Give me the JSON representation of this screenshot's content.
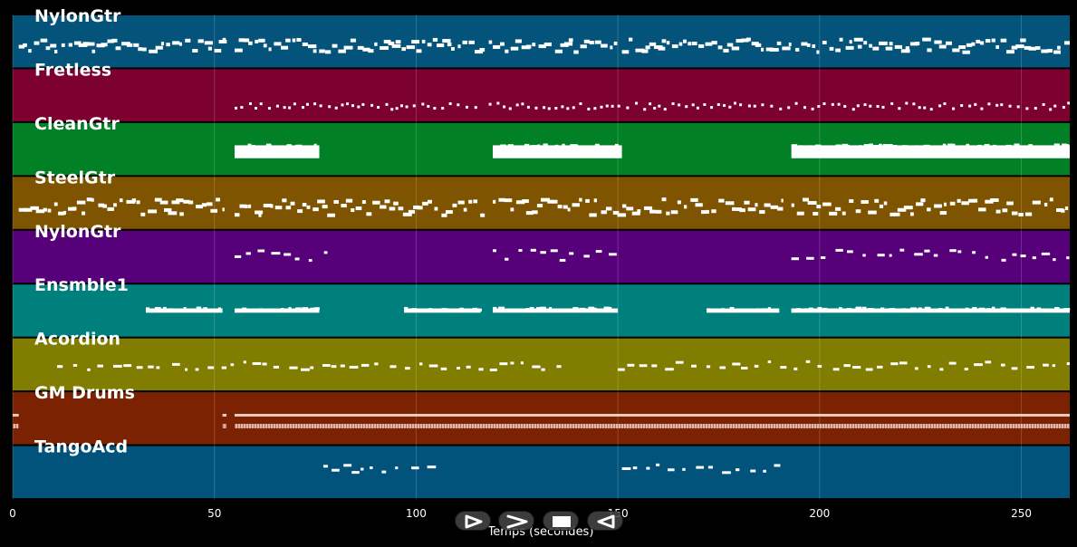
{
  "chart_data": {
    "type": "piano-roll",
    "xlabel": "Temps (secondes)",
    "xlim": [
      0,
      262
    ],
    "xticks": [
      0,
      50,
      100,
      150,
      200,
      250
    ],
    "xtick_labels": [
      "0",
      "50",
      "100",
      "150",
      "200",
      "250"
    ],
    "grid": true,
    "tracks": [
      {
        "name": "NylonGtr",
        "color": "#03537a",
        "segments": [
          [
            1.5,
            53.5
          ],
          [
            55,
            117
          ],
          [
            118,
            150
          ],
          [
            151,
            193
          ],
          [
            194,
            262
          ]
        ],
        "level": 0.55,
        "spread": 0.12,
        "style": "line"
      },
      {
        "name": "Fretless",
        "color": "#7c0030",
        "segments": [
          [
            55,
            117
          ],
          [
            118,
            191
          ],
          [
            192,
            262
          ]
        ],
        "level": 0.68,
        "spread": 0.06,
        "style": "dots"
      },
      {
        "name": "CleanGtr",
        "color": "#018025",
        "segments": [
          [
            55,
            76
          ],
          [
            119,
            151
          ],
          [
            193,
            262
          ]
        ],
        "level": 0.55,
        "spread": 0.12,
        "style": "block"
      },
      {
        "name": "SteelGtr",
        "color": "#7f5400",
        "segments": [
          [
            1.5,
            52.5
          ],
          [
            55,
            117
          ],
          [
            119,
            191
          ],
          [
            193,
            262
          ]
        ],
        "level": 0.55,
        "spread": 0.15,
        "style": "line"
      },
      {
        "name": "NylonGtr",
        "color": "#56007a",
        "segments": [
          [
            55,
            78
          ],
          [
            119,
            150
          ],
          [
            193,
            262
          ]
        ],
        "level": 0.45,
        "spread": 0.1,
        "style": "sparse"
      },
      {
        "name": "Ensmble1",
        "color": "#00807d",
        "segments": [
          [
            33,
            52
          ],
          [
            55,
            76
          ],
          [
            97,
            116
          ],
          [
            119,
            150
          ],
          [
            172,
            190
          ],
          [
            193,
            262
          ]
        ],
        "level": 0.5,
        "spread": 0.04,
        "style": "block"
      },
      {
        "name": "Acordion",
        "color": "#807d01",
        "segments": [
          [
            11,
            53
          ],
          [
            54,
            109
          ],
          [
            110,
            137
          ],
          [
            150,
            262
          ]
        ],
        "level": 0.5,
        "spread": 0.08,
        "style": "sparse"
      },
      {
        "name": "GM Drums",
        "color": "#7b2202",
        "segments": [
          [
            0,
            1.5
          ],
          [
            52,
            53
          ],
          [
            55,
            262
          ]
        ],
        "level": 0.62,
        "spread": 0.08,
        "style": "drums"
      },
      {
        "name": "TangoAcd",
        "color": "#02537b",
        "segments": [
          [
            77,
            107
          ],
          [
            151,
            191
          ]
        ],
        "level": 0.42,
        "spread": 0.08,
        "style": "sparse"
      }
    ]
  },
  "controls": [
    {
      "name": "rewind-button",
      "icon": "rewind-icon"
    },
    {
      "name": "forward-button",
      "icon": "forward-icon"
    },
    {
      "name": "stop-button",
      "icon": "stop-icon"
    },
    {
      "name": "play-button",
      "icon": "play-icon"
    }
  ]
}
